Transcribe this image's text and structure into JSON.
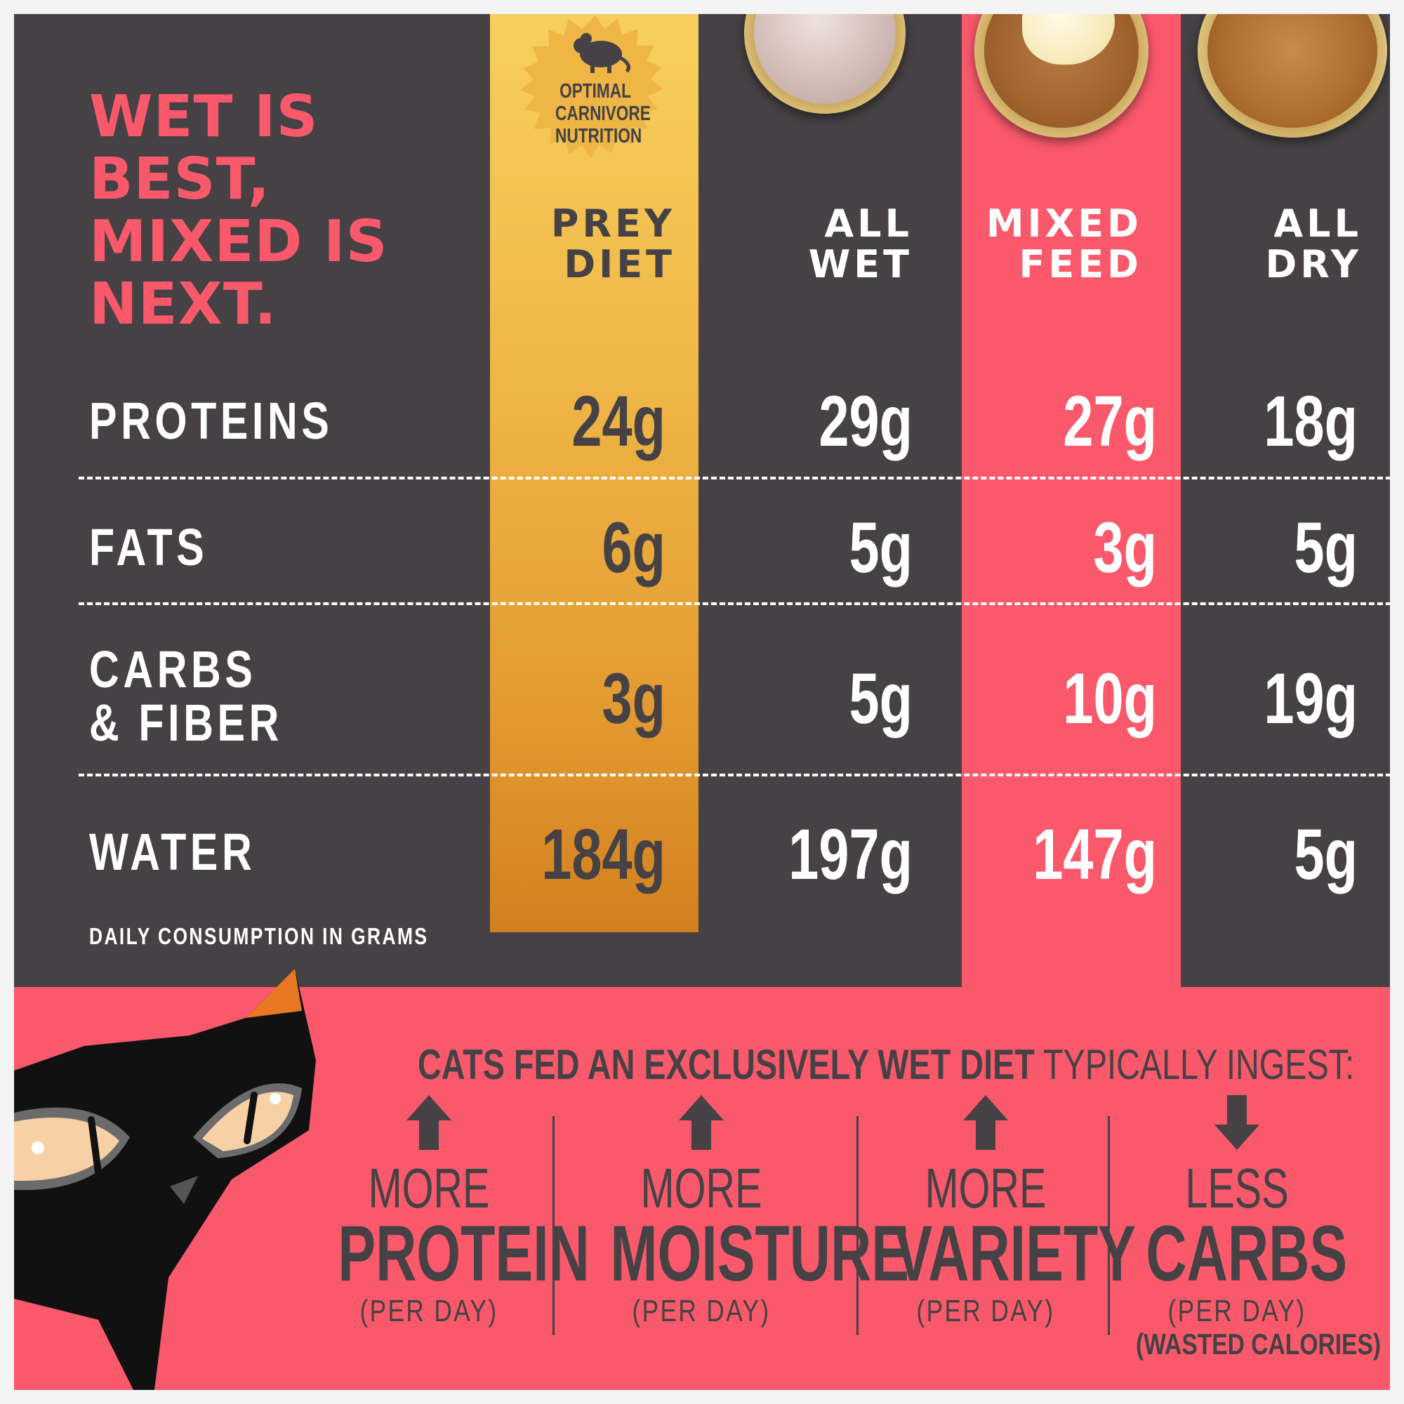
{
  "headline": "WET IS BEST, MIXED IS NEXT.",
  "seal": {
    "line1": "OPTIMAL",
    "line2": "CARNIVORE",
    "line3": "NUTRITION",
    "icon": "mouse-icon"
  },
  "colors": {
    "dark": "#454144",
    "pink": "#f9596b",
    "gold": "#efb646",
    "white": "#ffffff"
  },
  "chart_data": {
    "type": "table",
    "columns": [
      "PREY DIET",
      "ALL WET",
      "MIXED FEED",
      "ALL DRY"
    ],
    "rows": [
      {
        "label": "PROTEINS",
        "values": [
          "24g",
          "29g",
          "27g",
          "18g"
        ]
      },
      {
        "label": "FATS",
        "values": [
          "6g",
          "5g",
          "3g",
          "5g"
        ]
      },
      {
        "label": "CARBS & FIBER",
        "values": [
          "3g",
          "5g",
          "10g",
          "19g"
        ]
      },
      {
        "label": "WATER",
        "values": [
          "184g",
          "197g",
          "147g",
          "5g"
        ]
      }
    ],
    "footnote": "DAILY CONSUMPTION IN GRAMS"
  },
  "col_heads": {
    "prey": [
      "PREY",
      "DIET"
    ],
    "wet": [
      "ALL",
      "WET"
    ],
    "mixed": [
      "MIXED",
      "FEED"
    ],
    "dry": [
      "ALL",
      "DRY"
    ]
  },
  "row_label_lines": {
    "carbs": [
      "CARBS",
      "& FIBER"
    ]
  },
  "ingest": {
    "bold": "CATS FED AN EXCLUSIVELY WET DIET",
    "rest": " TYPICALLY INGEST:",
    "benefits": [
      {
        "small": "MORE",
        "big": "PROTEIN",
        "per": "(PER DAY)",
        "note": "",
        "arrow": "arrow-up-icon"
      },
      {
        "small": "MORE",
        "big": "MOISTURE",
        "per": "(PER DAY)",
        "note": "",
        "arrow": "arrow-up-icon"
      },
      {
        "small": "MORE",
        "big": "VARIETY",
        "per": "(PER DAY)",
        "note": "",
        "arrow": "arrow-up-icon"
      },
      {
        "small": "LESS",
        "big": "CARBS",
        "per": "(PER DAY)",
        "note": "(WASTED CALORIES)",
        "arrow": "arrow-down-icon"
      }
    ]
  }
}
